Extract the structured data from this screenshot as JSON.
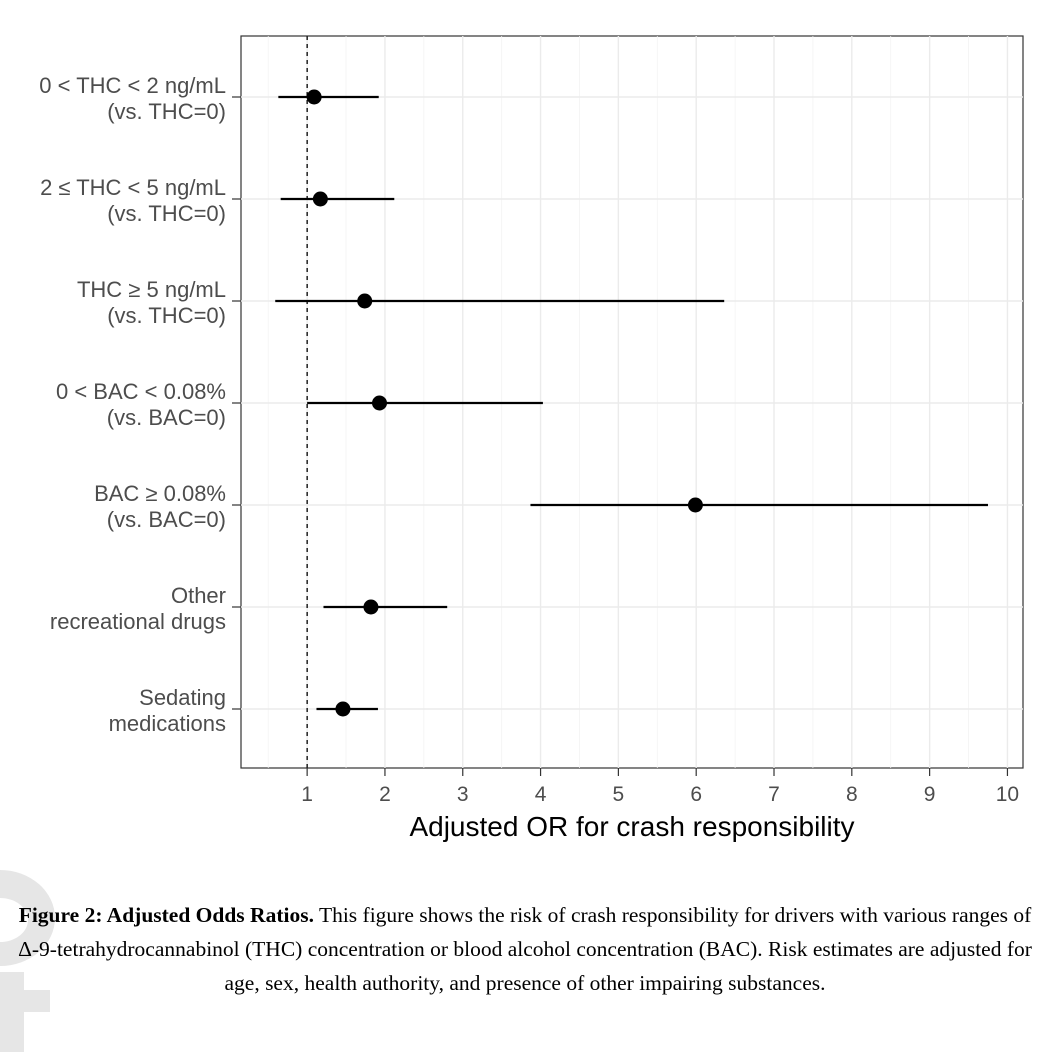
{
  "chart_data": {
    "type": "forest",
    "xlabel": "Adjusted OR for crash responsibility",
    "xlim": [
      0.15,
      10.2
    ],
    "xticks": [
      1,
      2,
      3,
      4,
      5,
      6,
      7,
      8,
      9,
      10
    ],
    "reference_line": 1,
    "grid": true,
    "rows": [
      {
        "label": [
          "0 < THC < 2 ng/mL",
          "(vs. THC=0)"
        ],
        "estimate": 1.09,
        "lower": 0.63,
        "upper": 1.92
      },
      {
        "label": [
          "2 ≤ THC < 5 ng/mL",
          "(vs. THC=0)"
        ],
        "estimate": 1.17,
        "lower": 0.66,
        "upper": 2.12
      },
      {
        "label": [
          "THC ≥ 5 ng/mL",
          "(vs. THC=0)"
        ],
        "estimate": 1.74,
        "lower": 0.59,
        "upper": 6.36
      },
      {
        "label": [
          "0 < BAC < 0.08%",
          "(vs. BAC=0)"
        ],
        "estimate": 1.93,
        "lower": 1.0,
        "upper": 4.03
      },
      {
        "label": [
          "BAC ≥ 0.08%",
          "(vs. BAC=0)"
        ],
        "estimate": 5.99,
        "lower": 3.87,
        "upper": 9.75
      },
      {
        "label": [
          "Other",
          "recreational drugs"
        ],
        "estimate": 1.82,
        "lower": 1.21,
        "upper": 2.8
      },
      {
        "label": [
          "Sedating",
          "medications"
        ],
        "estimate": 1.46,
        "lower": 1.12,
        "upper": 1.91
      }
    ]
  },
  "caption": {
    "title": "Figure 2: Adjusted Odds Ratios.",
    "text": " This figure shows the risk of crash responsibility for drivers with various ranges of Δ-9-tetrahydrocannabinol (THC) concentration or blood alcohol concentration (BAC). Risk estimates are adjusted for age, sex, health authority, and presence of other impairing substances."
  },
  "watermark": {
    "text": "ote"
  }
}
